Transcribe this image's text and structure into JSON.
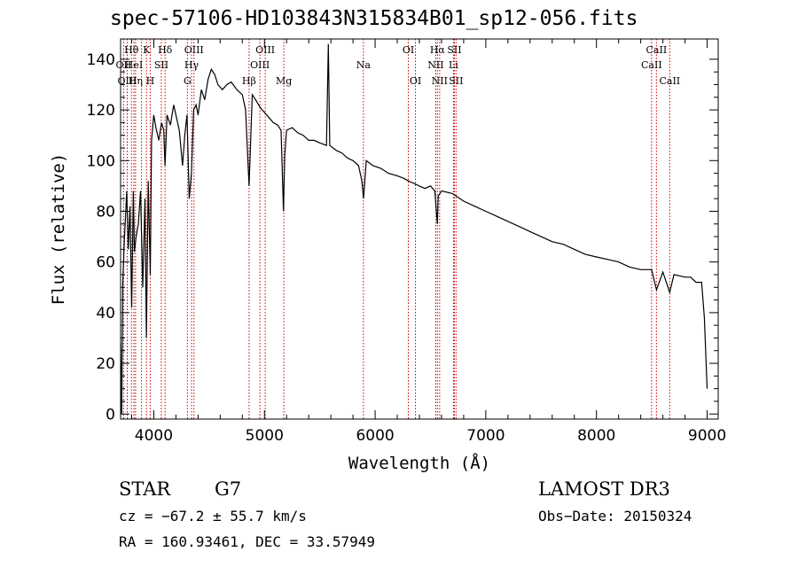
{
  "chart_data": {
    "type": "line",
    "title": "spec-57106-HD103843N315834B01_sp12-056.fits",
    "xlabel": "Wavelength (Å)",
    "ylabel": "Flux (relative)",
    "xlim": [
      3700,
      9100
    ],
    "ylim": [
      -2,
      148
    ],
    "xticks": [
      4000,
      5000,
      6000,
      7000,
      8000,
      9000
    ],
    "xtick_labels": [
      "4000",
      "5000",
      "6000",
      "7000",
      "8000",
      "9000"
    ],
    "yticks": [
      0,
      20,
      40,
      60,
      80,
      100,
      120,
      140
    ],
    "ytick_labels": [
      "0",
      "20",
      "40",
      "60",
      "80",
      "100",
      "120",
      "140"
    ],
    "grid": false,
    "series": [
      {
        "name": "spectrum",
        "x": [
          3700,
          3710,
          3720,
          3735,
          3745,
          3755,
          3770,
          3785,
          3800,
          3815,
          3825,
          3840,
          3860,
          3880,
          3900,
          3920,
          3933,
          3950,
          3968,
          3980,
          4000,
          4020,
          4045,
          4070,
          4090,
          4101,
          4120,
          4150,
          4180,
          4200,
          4230,
          4260,
          4280,
          4300,
          4320,
          4340,
          4360,
          4383,
          4400,
          4430,
          4460,
          4490,
          4520,
          4550,
          4580,
          4620,
          4660,
          4700,
          4750,
          4800,
          4830,
          4861,
          4890,
          4920,
          4960,
          5000,
          5040,
          5080,
          5120,
          5150,
          5172,
          5183,
          5200,
          5250,
          5300,
          5350,
          5400,
          5450,
          5500,
          5560,
          5577,
          5590,
          5650,
          5700,
          5750,
          5800,
          5850,
          5880,
          5895,
          5920,
          5980,
          6050,
          6120,
          6200,
          6260,
          6300,
          6350,
          6400,
          6450,
          6500,
          6540,
          6550,
          6563,
          6570,
          6600,
          6700,
          6800,
          6900,
          7000,
          7100,
          7200,
          7300,
          7400,
          7500,
          7600,
          7700,
          7800,
          7900,
          8000,
          8100,
          8200,
          8300,
          8400,
          8498,
          8542,
          8600,
          8662,
          8700,
          8800,
          8850,
          8900,
          8950,
          8975,
          9000
        ],
        "values": [
          28,
          0,
          52,
          70,
          78,
          88,
          65,
          82,
          42,
          88,
          64,
          70,
          75,
          88,
          50,
          85,
          30,
          92,
          55,
          108,
          118,
          113,
          108,
          115,
          112,
          98,
          118,
          114,
          122,
          118,
          112,
          98,
          110,
          118,
          85,
          95,
          120,
          122,
          118,
          128,
          124,
          132,
          136,
          134,
          130,
          128,
          130,
          131,
          128,
          126,
          120,
          90,
          126,
          124,
          121,
          119,
          117,
          115,
          114,
          112,
          80,
          102,
          112,
          113,
          111,
          110,
          108,
          108,
          107,
          106,
          146,
          106,
          104,
          103,
          101,
          100,
          98,
          92,
          85,
          100,
          98,
          97,
          95,
          94,
          93,
          92,
          91,
          90,
          89,
          90,
          88,
          82,
          75,
          86,
          88,
          87,
          84,
          82,
          80,
          78,
          76,
          74,
          72,
          70,
          68,
          67,
          65,
          63,
          62,
          61,
          60,
          58,
          57,
          57,
          49,
          56,
          48,
          55,
          54,
          54,
          52,
          52,
          38,
          10
        ]
      }
    ],
    "line_color": "#000000",
    "marker_color": "#cc0000",
    "line_markers": [
      {
        "wl": 3727,
        "label": "OII",
        "row": 1
      },
      {
        "wl": 3760,
        "label": "OIII",
        "row": 2
      },
      {
        "wl": 3798,
        "label": "Hθ",
        "row": 0
      },
      {
        "wl": 3820,
        "label": "HeI",
        "row": 1
      },
      {
        "wl": 3835,
        "label": "Hη",
        "row": 2
      },
      {
        "wl": 3889,
        "label": "",
        "row": 0
      },
      {
        "wl": 3934,
        "label": "K",
        "row": 0
      },
      {
        "wl": 3968,
        "label": "H",
        "row": 2
      },
      {
        "wl": 4068,
        "label": "SII",
        "row": 1
      },
      {
        "wl": 4102,
        "label": "Hδ",
        "row": 0
      },
      {
        "wl": 4304,
        "label": "G",
        "row": 2
      },
      {
        "wl": 4341,
        "label": "Hγ",
        "row": 1
      },
      {
        "wl": 4363,
        "label": "OIII",
        "row": 0
      },
      {
        "wl": 4861,
        "label": "Hβ",
        "row": 2
      },
      {
        "wl": 4959,
        "label": "OIII",
        "row": 1
      },
      {
        "wl": 5007,
        "label": "OIII",
        "row": 0
      },
      {
        "wl": 5175,
        "label": "Mg",
        "row": 2
      },
      {
        "wl": 5894,
        "label": "Na",
        "row": 1
      },
      {
        "wl": 6300,
        "label": "OI",
        "row": 0
      },
      {
        "wl": 6364,
        "label": "OI",
        "row": 2
      },
      {
        "wl": 6548,
        "label": "NII",
        "row": 1
      },
      {
        "wl": 6563,
        "label": "Hα",
        "row": 0
      },
      {
        "wl": 6583,
        "label": "NII",
        "row": 2
      },
      {
        "wl": 6708,
        "label": "Li",
        "row": 1
      },
      {
        "wl": 6716,
        "label": "SII",
        "row": 0
      },
      {
        "wl": 6731,
        "label": "SII",
        "row": 2
      },
      {
        "wl": 8498,
        "label": "CaII",
        "row": 1
      },
      {
        "wl": 8542,
        "label": "CaII",
        "row": 0
      },
      {
        "wl": 8662,
        "label": "CaII",
        "row": 2
      }
    ]
  },
  "info": {
    "object_class": "STAR",
    "subclass": "G7",
    "survey": "LAMOST DR3",
    "cz": "cz = −67.2 ± 55.7 km/s",
    "obs_date": "Obs−Date: 20150324",
    "coords": "RA = 160.93461, DEC =  33.57949"
  }
}
